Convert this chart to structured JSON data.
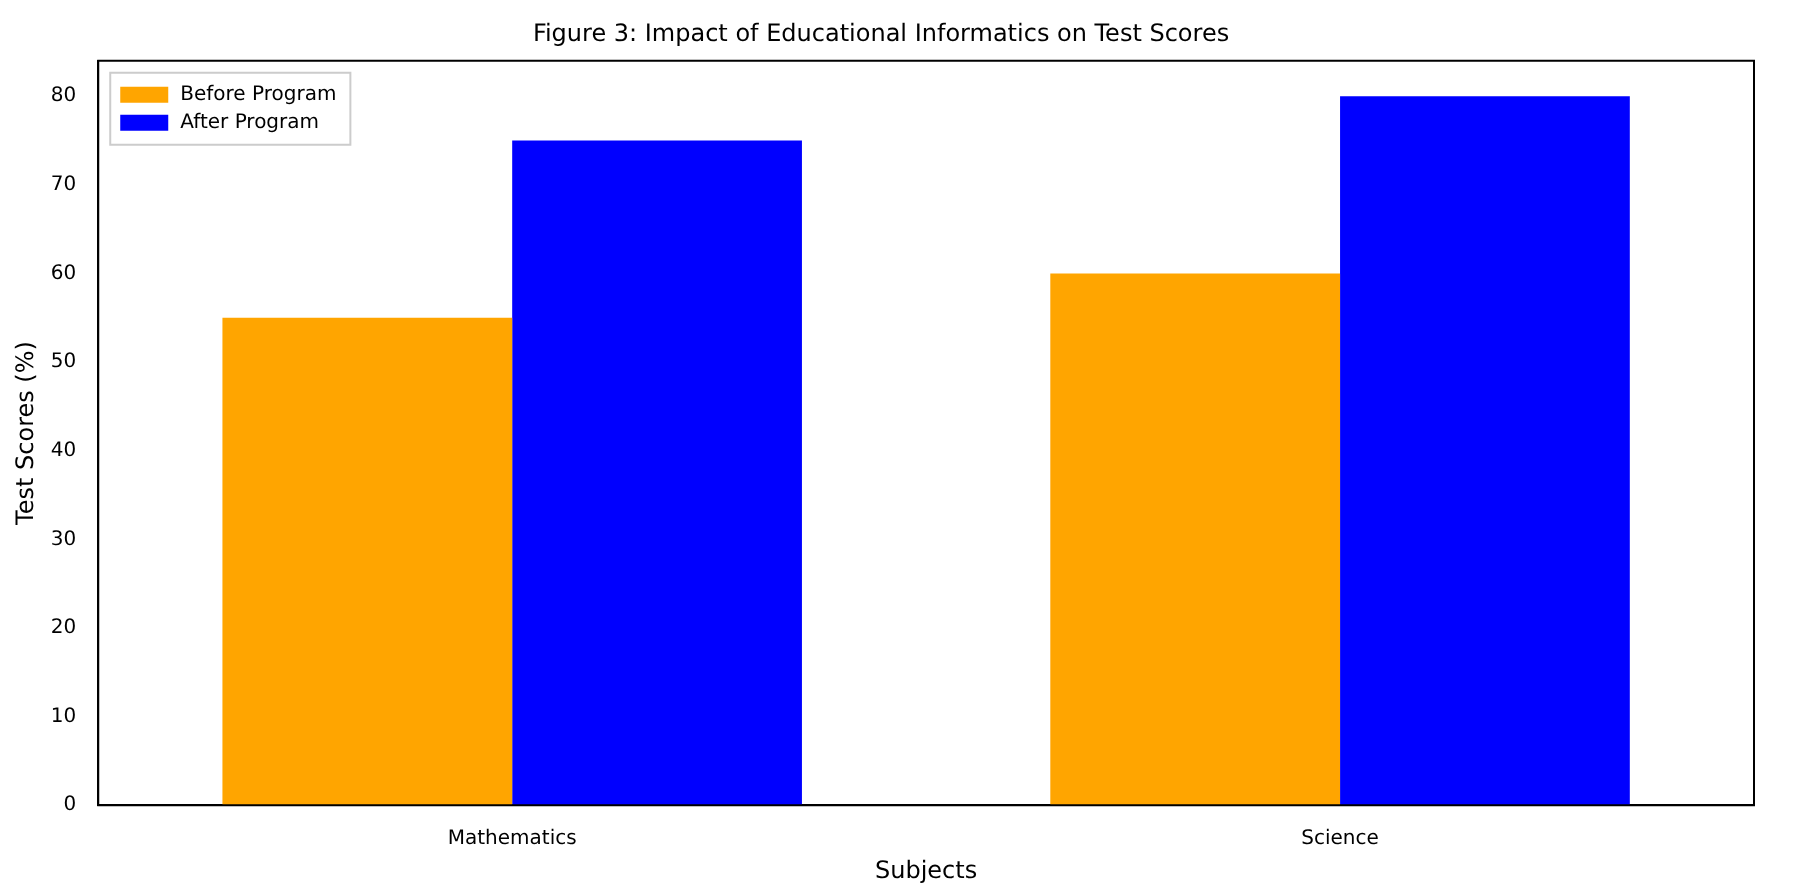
{
  "chart_data": {
    "type": "bar",
    "title": "Figure 3: Impact of Educational Informatics on Test Scores",
    "xlabel": "Subjects",
    "ylabel": "Test Scores (%)",
    "categories": [
      "Mathematics",
      "Science"
    ],
    "series": [
      {
        "name": "Before Program",
        "color": "#ffa500",
        "values": [
          55,
          60
        ]
      },
      {
        "name": "After Program",
        "color": "#0000ff",
        "values": [
          75,
          80
        ]
      }
    ],
    "ylim": [
      0,
      84
    ],
    "yticks": [
      0,
      10,
      20,
      30,
      40,
      50,
      60,
      70,
      80
    ],
    "grid": false,
    "legend": "top left"
  }
}
